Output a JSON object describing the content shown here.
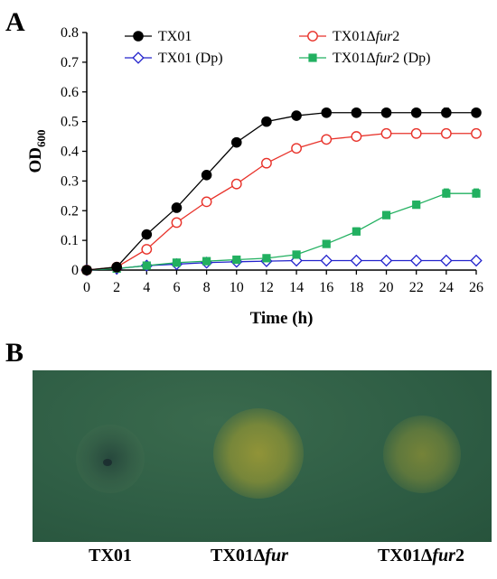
{
  "panel_a": {
    "letter": "A",
    "chart_data": {
      "type": "line",
      "xlabel": "Time (h)",
      "ylabel_main": "OD",
      "ylabel_sub": "600",
      "xlim": [
        0,
        26
      ],
      "ylim": [
        0,
        0.8
      ],
      "x_ticks": [
        0,
        2,
        4,
        6,
        8,
        10,
        12,
        14,
        16,
        18,
        20,
        22,
        24,
        26
      ],
      "y_ticks": [
        0,
        0.1,
        0.2,
        0.3,
        0.4,
        0.5,
        0.6,
        0.7,
        0.8
      ],
      "x_tick_labels": [
        "0",
        "2",
        "4",
        "6",
        "8",
        "10",
        "12",
        "14",
        "16",
        "18",
        "20",
        "22",
        "24",
        "26"
      ],
      "y_tick_labels": [
        "0",
        "0.1",
        "0.2",
        "0.3",
        "0.4",
        "0.5",
        "0.6",
        "0.7",
        "0.8"
      ],
      "grid": false,
      "legend_placement": "top",
      "x": [
        0,
        2,
        4,
        6,
        8,
        10,
        12,
        14,
        16,
        18,
        20,
        22,
        24,
        26
      ],
      "series": [
        {
          "name_prefix": "TX01",
          "name_italic": "",
          "name_suffix": "",
          "color": "#000000",
          "marker": "circle-filled",
          "values": [
            0,
            0.01,
            0.12,
            0.21,
            0.32,
            0.43,
            0.5,
            0.52,
            0.53,
            0.53,
            0.53,
            0.53,
            0.53,
            0.53
          ],
          "error": [
            0,
            0,
            0,
            0,
            0,
            0,
            0,
            0,
            0.012,
            0.012,
            0.012,
            0.012,
            0.015,
            0.012
          ]
        },
        {
          "name_prefix": "TX01Δ",
          "name_italic": "fur",
          "name_suffix": "2",
          "color": "#e8322a",
          "marker": "circle-open",
          "values": [
            0,
            0.01,
            0.07,
            0.16,
            0.23,
            0.29,
            0.36,
            0.41,
            0.44,
            0.45,
            0.46,
            0.46,
            0.46,
            0.46
          ],
          "error": [
            0,
            0,
            0,
            0,
            0,
            0,
            0,
            0,
            0,
            0,
            0.01,
            0.01,
            0.01,
            0.01
          ]
        },
        {
          "name_prefix": "TX01 (Dp)",
          "name_italic": "",
          "name_suffix": "",
          "color": "#2323cc",
          "marker": "diamond-open",
          "values": [
            0,
            0.005,
            0.015,
            0.02,
            0.025,
            0.028,
            0.03,
            0.032,
            0.032,
            0.032,
            0.032,
            0.032,
            0.032,
            0.032
          ],
          "error": [
            0,
            0,
            0,
            0,
            0,
            0,
            0,
            0,
            0,
            0,
            0,
            0,
            0,
            0
          ]
        },
        {
          "name_prefix": "TX01Δ",
          "name_italic": "fur",
          "name_suffix": "2 (Dp)",
          "color": "#22b060",
          "marker": "square-filled",
          "values": [
            0,
            0.005,
            0.015,
            0.025,
            0.03,
            0.035,
            0.04,
            0.052,
            0.088,
            0.13,
            0.185,
            0.22,
            0.258,
            0.258
          ],
          "error": [
            0,
            0,
            0,
            0,
            0,
            0,
            0,
            0,
            0.01,
            0.012,
            0.012,
            0.012,
            0.015,
            0.015
          ]
        }
      ]
    }
  },
  "panel_b": {
    "letter": "B",
    "labels": [
      {
        "prefix": "TX01",
        "italic": "",
        "suffix": ""
      },
      {
        "prefix": "TX01Δ",
        "italic": "fur",
        "suffix": ""
      },
      {
        "prefix": "TX01Δ",
        "italic": "fur",
        "suffix": "2"
      }
    ],
    "plate_color": "#2f5e45",
    "spot_colors": [
      "#2e5246",
      "#9a9a3a",
      "#7f8a3c"
    ]
  }
}
